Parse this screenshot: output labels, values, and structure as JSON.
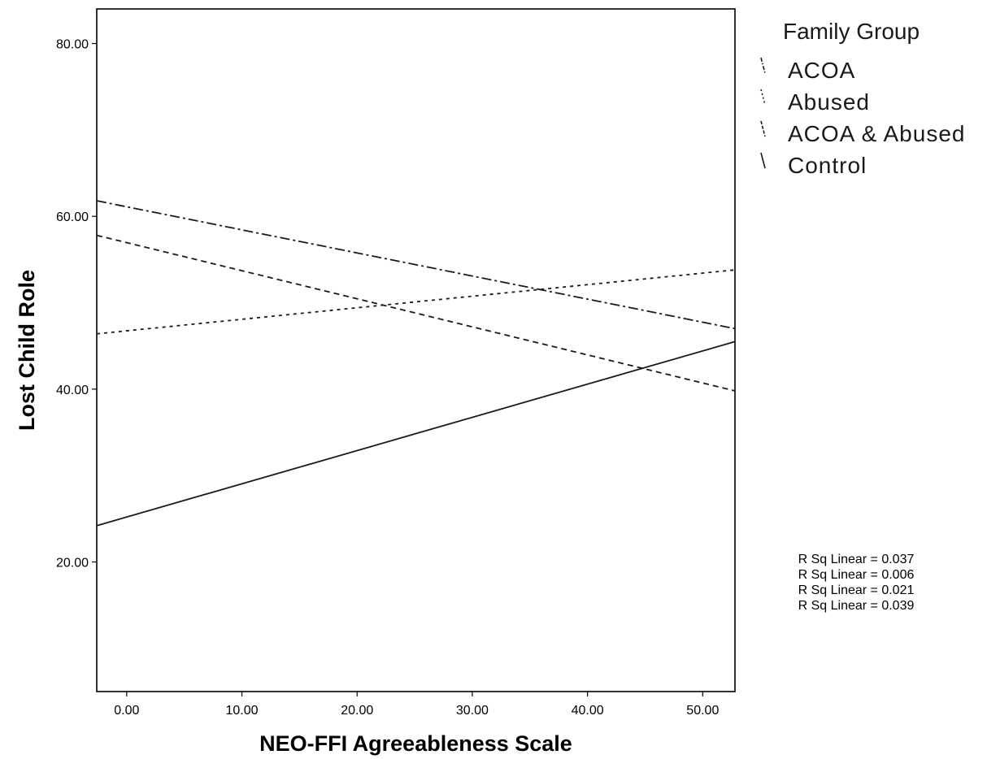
{
  "chart_data": {
    "type": "line",
    "title": "",
    "xlabel": "NEO-FFI Agreeableness Scale",
    "ylabel": "Lost Child Role",
    "xlim": [
      -2.6,
      52.8
    ],
    "ylim": [
      5.0,
      84.0
    ],
    "x_ticks": [
      0,
      10,
      20,
      30,
      40,
      50
    ],
    "x_tick_labels": [
      "0.00",
      "10.00",
      "20.00",
      "30.00",
      "40.00",
      "50.00"
    ],
    "y_ticks": [
      20,
      40,
      60,
      80
    ],
    "y_tick_labels": [
      "20.00",
      "40.00",
      "60.00",
      "80.00"
    ],
    "grid": false,
    "legend": {
      "title": "Family Group",
      "placement": "right"
    },
    "series": [
      {
        "name": "ACOA",
        "style": "dash-dot",
        "x": [
          -2.6,
          52.8
        ],
        "y": [
          61.8,
          47.0
        ]
      },
      {
        "name": "Abused",
        "style": "dotted",
        "x": [
          -2.6,
          52.8
        ],
        "y": [
          46.4,
          53.8
        ]
      },
      {
        "name": "ACOA & Abused",
        "style": "dashed",
        "x": [
          -2.6,
          52.8
        ],
        "y": [
          57.8,
          39.8
        ]
      },
      {
        "name": "Control",
        "style": "solid",
        "x": [
          -2.6,
          52.8
        ],
        "y": [
          24.2,
          45.5
        ]
      }
    ],
    "annotations": [
      "R Sq Linear = 0.037",
      "R Sq Linear = 0.006",
      "R Sq Linear = 0.021",
      "R Sq Linear = 0.039"
    ]
  }
}
